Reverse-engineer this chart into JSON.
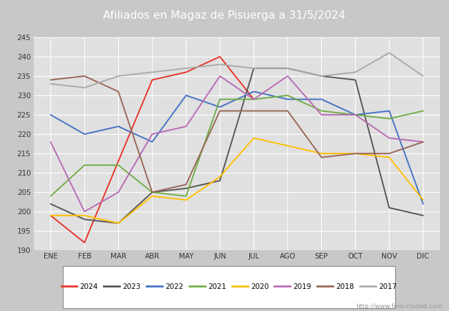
{
  "title": "Afiliados en Magaz de Pisuerga a 31/5/2024",
  "header_bg": "#5b9bd5",
  "plot_bg": "#e0e0e0",
  "ylim": [
    190,
    245
  ],
  "yticks": [
    190,
    195,
    200,
    205,
    210,
    215,
    220,
    225,
    230,
    235,
    240,
    245
  ],
  "months": [
    "ENE",
    "FEB",
    "MAR",
    "ABR",
    "MAY",
    "JUN",
    "JUL",
    "AGO",
    "SEP",
    "OCT",
    "NOV",
    "DIC"
  ],
  "watermark": "http://www.foro-ciudad.com",
  "series": {
    "2024": {
      "color": "#e8332a",
      "data": [
        199,
        192,
        null,
        234,
        236,
        240,
        229,
        null,
        null,
        null,
        null,
        null
      ]
    },
    "2023": {
      "color": "#555555",
      "data": [
        202,
        198,
        197,
        205,
        206,
        208,
        237,
        237,
        235,
        234,
        201,
        199
      ]
    },
    "2022": {
      "color": "#4472c4",
      "data": [
        225,
        220,
        222,
        218,
        230,
        227,
        231,
        229,
        229,
        225,
        226,
        202
      ]
    },
    "2021": {
      "color": "#70ad47",
      "data": [
        204,
        212,
        212,
        205,
        204,
        229,
        229,
        230,
        226,
        225,
        224,
        226
      ]
    },
    "2020": {
      "color": "#ffc000",
      "data": [
        199,
        199,
        197,
        204,
        203,
        209,
        219,
        217,
        215,
        215,
        214,
        203
      ]
    },
    "2019": {
      "color": "#b86ab5",
      "data": [
        218,
        200,
        205,
        220,
        222,
        235,
        229,
        235,
        225,
        225,
        219,
        218
      ]
    },
    "2018": {
      "color": "#996655",
      "data": [
        234,
        235,
        231,
        205,
        207,
        226,
        226,
        226,
        214,
        215,
        215,
        218
      ]
    },
    "2017": {
      "color": "#aaaaaa",
      "data": [
        233,
        232,
        235,
        236,
        237,
        238,
        237,
        237,
        235,
        236,
        241,
        235
      ]
    }
  },
  "series_order": [
    "2024",
    "2023",
    "2022",
    "2021",
    "2020",
    "2019",
    "2018",
    "2017"
  ]
}
